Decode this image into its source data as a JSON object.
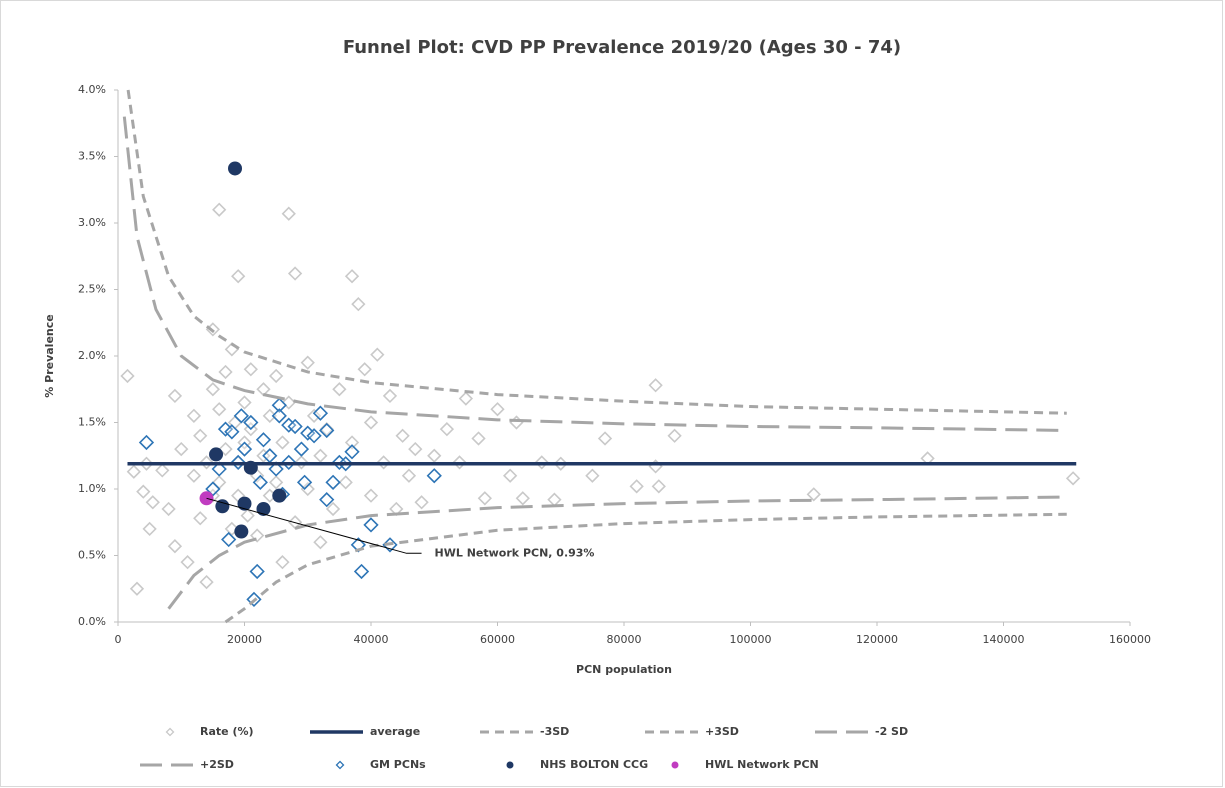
{
  "chart_data": {
    "type": "scatter",
    "title": "Funnel Plot: CVD PP Prevalence 2019/20 (Ages 30 - 74)",
    "x_label": "PCN population",
    "y_label": "% Prevalence",
    "xlim": [
      0,
      160000
    ],
    "xticks": [
      0,
      20000,
      40000,
      60000,
      80000,
      100000,
      120000,
      140000,
      160000
    ],
    "ylim": [
      0,
      4
    ],
    "yticks": [
      {
        "value": 0,
        "label": "0.0%"
      },
      {
        "value": 0.5,
        "label": "0.5%"
      },
      {
        "value": 1,
        "label": "1.0%"
      },
      {
        "value": 1.5,
        "label": "1.5%"
      },
      {
        "value": 2,
        "label": "2.0%"
      },
      {
        "value": 2.5,
        "label": "2.5%"
      },
      {
        "value": 3,
        "label": "3.0%"
      },
      {
        "value": 3.5,
        "label": "3.5%"
      },
      {
        "value": 4,
        "label": "4.0%"
      }
    ],
    "grid": false,
    "legend": "bottom",
    "annotation": {
      "text": "HWL Network PCN, 0.93%"
    },
    "series": [
      {
        "name": "Rate (%)",
        "marker": "diamond",
        "filled": false,
        "color": "#c9c9c9",
        "x": [
          1500,
          2500,
          3000,
          4000,
          4500,
          5000,
          5500,
          7000,
          8000,
          9000,
          9000,
          10000,
          11000,
          12000,
          12000,
          13000,
          13000,
          14000,
          14000,
          15000,
          15000,
          15000,
          16000,
          16000,
          16000,
          17000,
          17000,
          18000,
          18000,
          18500,
          19000,
          19000,
          19000,
          20000,
          20000,
          20500,
          21000,
          21000,
          22000,
          22000,
          23000,
          23000,
          24000,
          24000,
          25000,
          25000,
          26000,
          26000,
          27000,
          27000,
          28000,
          28000,
          29000,
          30000,
          30000,
          31000,
          32000,
          32000,
          33000,
          34000,
          35000,
          36000,
          37000,
          37000,
          38000,
          39000,
          40000,
          40000,
          41000,
          42000,
          43000,
          44000,
          45000,
          46000,
          47000,
          48000,
          50000,
          52000,
          54000,
          55000,
          57000,
          58000,
          60000,
          62000,
          63000,
          64000,
          67000,
          69000,
          70000,
          75000,
          77000,
          82000,
          85000,
          85000,
          85500,
          88000,
          110000,
          128000,
          151000
        ],
        "values": [
          1.85,
          1.13,
          0.25,
          0.98,
          1.19,
          0.7,
          0.9,
          1.14,
          0.85,
          0.57,
          1.7,
          1.3,
          0.45,
          1.1,
          1.55,
          0.78,
          1.4,
          1.2,
          0.3,
          1.75,
          2.2,
          0.95,
          3.1,
          1.6,
          1.05,
          1.88,
          1.3,
          2.05,
          0.7,
          1.5,
          2.6,
          1.2,
          0.95,
          1.65,
          1.35,
          0.8,
          1.9,
          1.45,
          1.1,
          0.65,
          1.75,
          1.25,
          0.95,
          1.55,
          1.85,
          1.05,
          0.45,
          1.35,
          3.07,
          1.65,
          0.75,
          2.62,
          1.2,
          1.95,
          1.0,
          1.55,
          0.6,
          1.25,
          1.45,
          0.85,
          1.75,
          1.05,
          2.6,
          1.35,
          2.39,
          1.9,
          1.5,
          0.95,
          2.01,
          1.2,
          1.7,
          0.85,
          1.4,
          1.1,
          1.3,
          0.9,
          1.25,
          1.45,
          1.2,
          1.68,
          1.38,
          0.93,
          1.6,
          1.1,
          1.5,
          0.93,
          1.2,
          0.92,
          1.19,
          1.1,
          1.38,
          1.02,
          1.78,
          1.17,
          1.02,
          1.4,
          0.96,
          1.23,
          1.08
        ]
      },
      {
        "name": "average",
        "marker": "none",
        "dash": "solid",
        "color": "#203864",
        "x": [
          1500,
          151500
        ],
        "values": [
          1.19,
          1.19
        ]
      },
      {
        "name": "-3SD",
        "marker": "none",
        "dash": "short",
        "color": "#a6a6a6",
        "x": [
          17000,
          20000,
          25000,
          30000,
          40000,
          60000,
          80000,
          100000,
          120000,
          150000
        ],
        "values": [
          0.0,
          0.1,
          0.3,
          0.43,
          0.57,
          0.69,
          0.74,
          0.77,
          0.79,
          0.81
        ]
      },
      {
        "name": "+3SD",
        "marker": "none",
        "dash": "short",
        "color": "#a6a6a6",
        "x": [
          1600,
          4000,
          8000,
          12000,
          16000,
          20000,
          30000,
          40000,
          60000,
          80000,
          100000,
          120000,
          150000
        ],
        "values": [
          4.0,
          3.2,
          2.6,
          2.3,
          2.15,
          2.03,
          1.88,
          1.8,
          1.71,
          1.66,
          1.62,
          1.6,
          1.57
        ]
      },
      {
        "name": "-2 SD",
        "marker": "none",
        "dash": "long",
        "color": "#a6a6a6",
        "x": [
          8000,
          12000,
          16000,
          20000,
          30000,
          40000,
          60000,
          80000,
          100000,
          120000,
          150000
        ],
        "values": [
          0.1,
          0.35,
          0.5,
          0.6,
          0.73,
          0.8,
          0.86,
          0.89,
          0.91,
          0.92,
          0.94
        ]
      },
      {
        "name": "+2SD",
        "marker": "none",
        "dash": "long",
        "color": "#a6a6a6",
        "x": [
          1000,
          3000,
          6000,
          10000,
          15000,
          20000,
          30000,
          40000,
          60000,
          80000,
          100000,
          120000,
          150000
        ],
        "values": [
          3.8,
          2.9,
          2.35,
          2.0,
          1.82,
          1.74,
          1.64,
          1.58,
          1.52,
          1.49,
          1.47,
          1.46,
          1.44
        ]
      },
      {
        "name": "GM PCNs",
        "marker": "diamond",
        "filled": false,
        "color": "#2e75b6",
        "x": [
          4500,
          15000,
          16000,
          17000,
          17500,
          18000,
          19000,
          19500,
          20000,
          21000,
          22000,
          21500,
          22500,
          23000,
          24000,
          25000,
          25500,
          25500,
          26000,
          27000,
          27000,
          28000,
          29000,
          29500,
          30000,
          31000,
          32000,
          33000,
          33000,
          34000,
          35000,
          36000,
          37000,
          38000,
          38500,
          40000,
          43000,
          50000
        ],
        "values": [
          1.35,
          1.0,
          1.15,
          1.45,
          0.62,
          1.43,
          1.2,
          1.55,
          1.3,
          1.5,
          0.38,
          0.17,
          1.05,
          1.37,
          1.25,
          1.15,
          1.63,
          1.55,
          0.96,
          1.2,
          1.48,
          1.47,
          1.3,
          1.05,
          1.42,
          1.4,
          1.57,
          1.44,
          0.92,
          1.05,
          1.2,
          1.19,
          1.28,
          0.58,
          0.38,
          0.73,
          0.58,
          1.1
        ]
      },
      {
        "name": "NHS BOLTON CCG",
        "marker": "circle",
        "filled": true,
        "color": "#1f3864",
        "x": [
          18500,
          15500,
          16500,
          19500,
          20000,
          21000,
          23000,
          25500
        ],
        "values": [
          3.41,
          1.26,
          0.87,
          0.68,
          0.89,
          1.16,
          0.85,
          0.95
        ]
      },
      {
        "name": "HWL Network PCN",
        "marker": "circle",
        "filled": true,
        "color": "#c03cc0",
        "x": [
          14000
        ],
        "values": [
          0.93
        ]
      }
    ]
  }
}
